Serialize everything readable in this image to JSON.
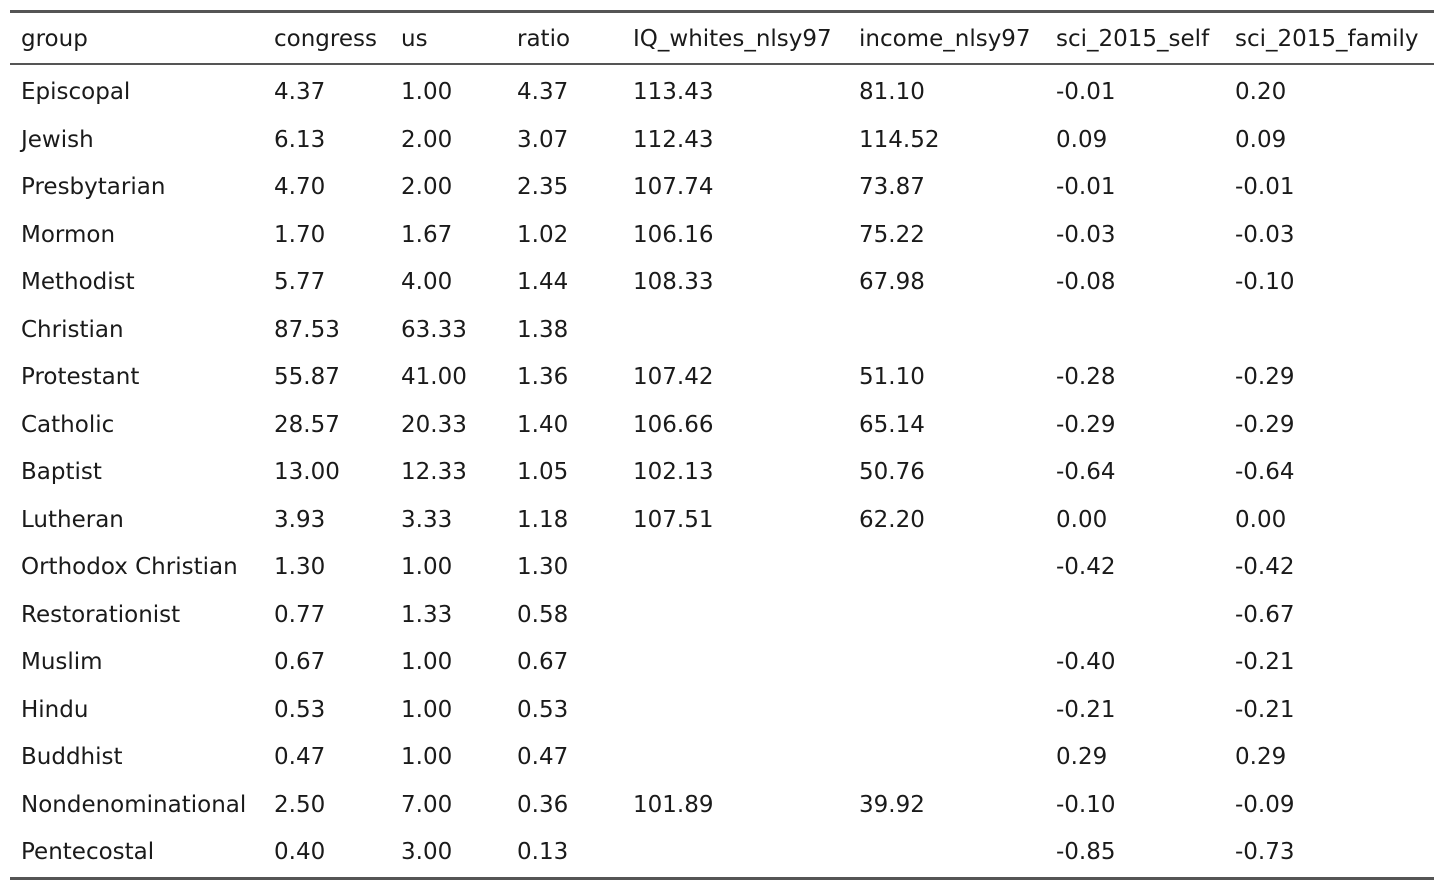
{
  "table": {
    "columns": [
      "group",
      "congress",
      "us",
      "ratio",
      "IQ_whites_nlsy97",
      "income_nlsy97",
      "sci_2015_self",
      "sci_2015_family"
    ],
    "rows": [
      [
        "Episcopal",
        "4.37",
        "1.00",
        "4.37",
        "113.43",
        "81.10",
        "-0.01",
        "0.20"
      ],
      [
        "Jewish",
        "6.13",
        "2.00",
        "3.07",
        "112.43",
        "114.52",
        "0.09",
        "0.09"
      ],
      [
        "Presbytarian",
        "4.70",
        "2.00",
        "2.35",
        "107.74",
        "73.87",
        "-0.01",
        "-0.01"
      ],
      [
        "Mormon",
        "1.70",
        "1.67",
        "1.02",
        "106.16",
        "75.22",
        "-0.03",
        "-0.03"
      ],
      [
        "Methodist",
        "5.77",
        "4.00",
        "1.44",
        "108.33",
        "67.98",
        "-0.08",
        "-0.10"
      ],
      [
        "Christian",
        "87.53",
        "63.33",
        "1.38",
        "",
        "",
        "",
        ""
      ],
      [
        "Protestant",
        "55.87",
        "41.00",
        "1.36",
        "107.42",
        "51.10",
        "-0.28",
        "-0.29"
      ],
      [
        "Catholic",
        "28.57",
        "20.33",
        "1.40",
        "106.66",
        "65.14",
        "-0.29",
        "-0.29"
      ],
      [
        "Baptist",
        "13.00",
        "12.33",
        "1.05",
        "102.13",
        "50.76",
        "-0.64",
        "-0.64"
      ],
      [
        "Lutheran",
        "3.93",
        "3.33",
        "1.18",
        "107.51",
        "62.20",
        "0.00",
        "0.00"
      ],
      [
        "Orthodox Christian",
        "1.30",
        "1.00",
        "1.30",
        "",
        "",
        "-0.42",
        "-0.42"
      ],
      [
        "Restorationist",
        "0.77",
        "1.33",
        "0.58",
        "",
        "",
        "",
        "-0.67"
      ],
      [
        "Muslim",
        "0.67",
        "1.00",
        "0.67",
        "",
        "",
        "-0.40",
        "-0.21"
      ],
      [
        "Hindu",
        "0.53",
        "1.00",
        "0.53",
        "",
        "",
        "-0.21",
        "-0.21"
      ],
      [
        "Buddhist",
        "0.47",
        "1.00",
        "0.47",
        "",
        "",
        "0.29",
        "0.29"
      ],
      [
        "Nondenominational",
        "2.50",
        "7.00",
        "0.36",
        "101.89",
        "39.92",
        "-0.10",
        "-0.09"
      ],
      [
        "Pentecostal",
        "0.40",
        "3.00",
        "0.13",
        "",
        "",
        "-0.85",
        "-0.73"
      ]
    ]
  }
}
